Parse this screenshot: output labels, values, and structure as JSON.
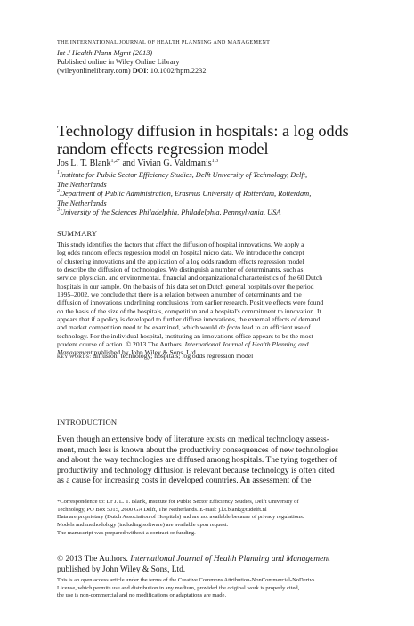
{
  "header": {
    "journal_name": "THE INTERNATIONAL JOURNAL OF HEALTH PLANNING AND MANAGEMENT",
    "citation": "Int J Health Plann Mgmt (2013)",
    "published": "Published online in Wiley Online Library",
    "site": "(wileyonlinelibrary.com)",
    "doi_label": "DOI",
    "doi": ": 10.1002/hpm.2232"
  },
  "title_lines": [
    "Technology diffusion in hospitals: a log odds",
    "random effects regression model"
  ],
  "authors": {
    "author1": "Jos L. T. Blank",
    "author1_sup": "1,2*",
    "joiner": "and",
    "author2": "Vivian G. Valdmanis",
    "author2_sup": "1,3"
  },
  "affiliations": [
    {
      "num": "1",
      "lines": [
        "Institute for Public Sector Efficiency Studies, Delft University of Technology, Delft,",
        "The Netherlands"
      ]
    },
    {
      "num": "2",
      "lines": [
        "Department of Public Administration, Erasmus University of Rotterdam, Rotterdam,",
        "The Netherlands"
      ]
    },
    {
      "num": "3",
      "lines": [
        "University of the Sciences Philadelphia, Philadelphia, Pennsylvania, USA"
      ]
    }
  ],
  "summary": {
    "heading": "SUMMARY",
    "lines": [
      "This study identifies the factors that affect the diffusion of hospital innovations. We apply a",
      "log odds random effects regression model on hospital micro data. We introduce the concept",
      "of clustering innovations and the application of a log odds random effects regression model",
      "to describe the diffusion of technologies. We distinguish a number of determinants, such as",
      "service, physician, and environmental, financial and organizational characteristics of the 60 Dutch",
      "hospitals in our sample. On the basis of this data set on Dutch general hospitals over the period",
      "1995–2002, we conclude that there is a relation between a number of determinants and the",
      "diffusion of innovations underlining conclusions from earlier research. Positive effects were found",
      "on the basis of the size of the hospitals, competition and a hospital's commitment to innovation. It",
      "appears that if a policy is developed to further diffuse innovations, the external effects of demand"
    ],
    "line11_a": "and market competition need to be examined, which would ",
    "line11_italic": "de facto",
    "line11_b": " lead to an efficient use of",
    "line12": "technology. For the individual hospital, instituting an innovations office appears to be the most",
    "line13_a": "prudent course of action. © 2013 The Authors. ",
    "line13_italic": "International Journal of Health Planning and",
    "line14_italic": "Management",
    "line14_b": " published by John Wiley & Sons, Ltd."
  },
  "keywords": {
    "label": "KEY WORDS:",
    "text": "diffusion; technology; hospitals; log odds regression model"
  },
  "introduction": {
    "heading": "INTRODUCTION",
    "lines": [
      "Even though an extensive body of literature exists on medical technology assess-",
      "ment, much less is known about the productivity consequences of new technologies",
      "and about the way technologies are diffused among hospitals. The tying together of",
      "productivity and technology diffusion is relevant because technology is often cited",
      "as a cause for increasing costs in developed countries. An assessment of the"
    ]
  },
  "footnotes": [
    "*Correspondence to: Dr J. L. T. Blank, Institute for Public Sector Efficiency Studies, Delft University of",
    "Technology, PO Box 5015, 2600 GA Delft, The Netherlands. E-mail: j.l.t.blank@tudelft.nl",
    "Data are proprietary (Dutch Association of Hospitals) and are not available because of privacy regulations.",
    "Models and methodology (including software) are available upon request.",
    "The manuscript was prepared without a contract or funding."
  ],
  "copyright": {
    "line1_a": "© 2013 The Authors. ",
    "line1_italic": "International Journal of Health Planning and Management",
    "line2": "published by John Wiley & Sons, Ltd."
  },
  "license_lines": [
    "This is an open access article under the terms of the Creative Commons Attribution-NonCommercial-NoDerivs",
    "License, which permits use and distribution in any medium, provided the original work is properly cited,",
    "the use is non-commercial and no modifications or adaptations are made."
  ]
}
